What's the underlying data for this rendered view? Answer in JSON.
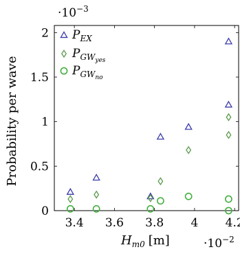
{
  "chart_data": {
    "type": "scatter",
    "xlabel": {
      "main": "H",
      "sub": "m0",
      "unit": "[m]"
    },
    "ylabel": "Probability per wave",
    "x_multiplier": "·10",
    "x_multiplier_exp": "−2",
    "y_multiplier": "·10",
    "y_multiplier_exp": "−3",
    "xlim": [
      3.3,
      4.22
    ],
    "ylim": [
      0,
      2.08
    ],
    "xticks": [
      3.4,
      3.6,
      3.8,
      4.0,
      4.2
    ],
    "xtick_labels": [
      "3.4",
      "3.6",
      "3.8",
      "4",
      "4.2"
    ],
    "yticks": [
      0,
      0.5,
      1.0,
      1.5,
      2.0
    ],
    "ytick_labels": [
      "0",
      "0.5",
      "1",
      "1.5",
      "2"
    ],
    "grid": false,
    "legend_position": "top-left",
    "series": [
      {
        "label": {
          "main": "P",
          "sub": "EX",
          "subsub": ""
        },
        "marker": "triangle",
        "color": "#3b3bab",
        "points": [
          [
            3.38,
            0.21
          ],
          [
            3.51,
            0.37
          ],
          [
            3.78,
            0.16
          ],
          [
            3.83,
            0.83
          ],
          [
            3.97,
            0.94
          ],
          [
            4.17,
            1.9
          ],
          [
            4.17,
            1.19
          ]
        ]
      },
      {
        "label": {
          "main": "P",
          "sub": "GW",
          "subsub": "yes"
        },
        "marker": "diamond",
        "color": "#5a9a4a",
        "points": [
          [
            3.38,
            0.13
          ],
          [
            3.51,
            0.18
          ],
          [
            3.78,
            0.14
          ],
          [
            3.83,
            0.33
          ],
          [
            3.97,
            0.68
          ],
          [
            4.17,
            1.05
          ],
          [
            4.17,
            0.85
          ]
        ]
      },
      {
        "label": {
          "main": "P",
          "sub": "GW",
          "subsub": "no"
        },
        "marker": "circle",
        "color": "#44b040",
        "points": [
          [
            3.38,
            0.02
          ],
          [
            3.51,
            0.02
          ],
          [
            3.78,
            0.02
          ],
          [
            3.83,
            0.11
          ],
          [
            3.97,
            0.16
          ],
          [
            4.17,
            0.13
          ],
          [
            4.17,
            0.0
          ]
        ]
      }
    ]
  }
}
